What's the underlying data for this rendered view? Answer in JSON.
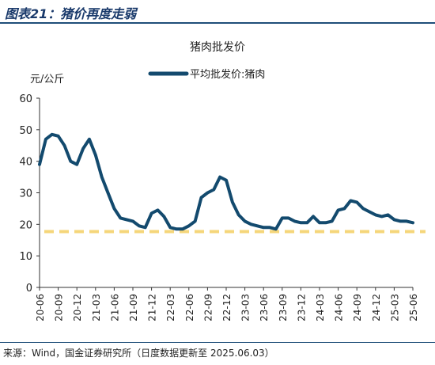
{
  "header": {
    "figure_title": "图表21：猪价再度走弱"
  },
  "source_note": "来源：Wind，国金证券研究所（日度数据更新至 2025.06.03）",
  "colors": {
    "title": "#1a3a6b",
    "series": "#134a6e",
    "reference_line": "#f5d67a",
    "axis": "#333333"
  },
  "chart_data": {
    "type": "line",
    "title": "猪肉批发价",
    "ylabel": "元/公斤",
    "ylim": [
      0,
      60
    ],
    "yticks": [
      0,
      10,
      20,
      30,
      40,
      50,
      60
    ],
    "grid": false,
    "legend_position": "top-center",
    "x_tick_labels": [
      "20-06",
      "20-09",
      "20-12",
      "21-03",
      "21-06",
      "21-09",
      "21-12",
      "22-03",
      "22-06",
      "22-09",
      "22-12",
      "23-03",
      "23-06",
      "23-09",
      "23-12",
      "24-03",
      "24-06",
      "24-09",
      "24-12",
      "25-03",
      "25-06"
    ],
    "x_range": [
      "2020-06",
      "2025-06"
    ],
    "series": [
      {
        "name": "平均批发价:猪肉",
        "x": [
          "2020-06",
          "2020-07",
          "2020-08",
          "2020-09",
          "2020-10",
          "2020-11",
          "2020-12",
          "2021-01",
          "2021-02",
          "2021-03",
          "2021-04",
          "2021-05",
          "2021-06",
          "2021-07",
          "2021-08",
          "2021-09",
          "2021-10",
          "2021-11",
          "2021-12",
          "2022-01",
          "2022-02",
          "2022-03",
          "2022-04",
          "2022-05",
          "2022-06",
          "2022-07",
          "2022-08",
          "2022-09",
          "2022-10",
          "2022-11",
          "2022-12",
          "2023-01",
          "2023-02",
          "2023-03",
          "2023-04",
          "2023-05",
          "2023-06",
          "2023-07",
          "2023-08",
          "2023-09",
          "2023-10",
          "2023-11",
          "2023-12",
          "2024-01",
          "2024-02",
          "2024-03",
          "2024-04",
          "2024-05",
          "2024-06",
          "2024-07",
          "2024-08",
          "2024-09",
          "2024-10",
          "2024-11",
          "2024-12",
          "2025-01",
          "2025-02",
          "2025-03",
          "2025-04",
          "2025-05",
          "2025-06"
        ],
        "values": [
          39,
          47,
          48.5,
          48,
          45,
          40,
          39,
          44,
          47,
          42,
          35,
          30,
          25,
          22,
          21.5,
          21,
          19.5,
          19,
          23.5,
          24.5,
          22.5,
          19,
          18.5,
          18.5,
          19.5,
          21,
          28.5,
          30,
          31,
          35,
          34,
          27,
          23,
          21,
          20,
          19.5,
          19,
          19,
          18.5,
          22,
          22,
          21,
          20.5,
          20.5,
          22.5,
          20.5,
          20.5,
          21,
          24.5,
          25,
          27.5,
          27,
          25,
          24,
          23,
          22.5,
          23,
          21.5,
          21,
          21,
          20.5
        ]
      }
    ],
    "reference_line": {
      "value": 17.7,
      "style": "dashed"
    }
  }
}
